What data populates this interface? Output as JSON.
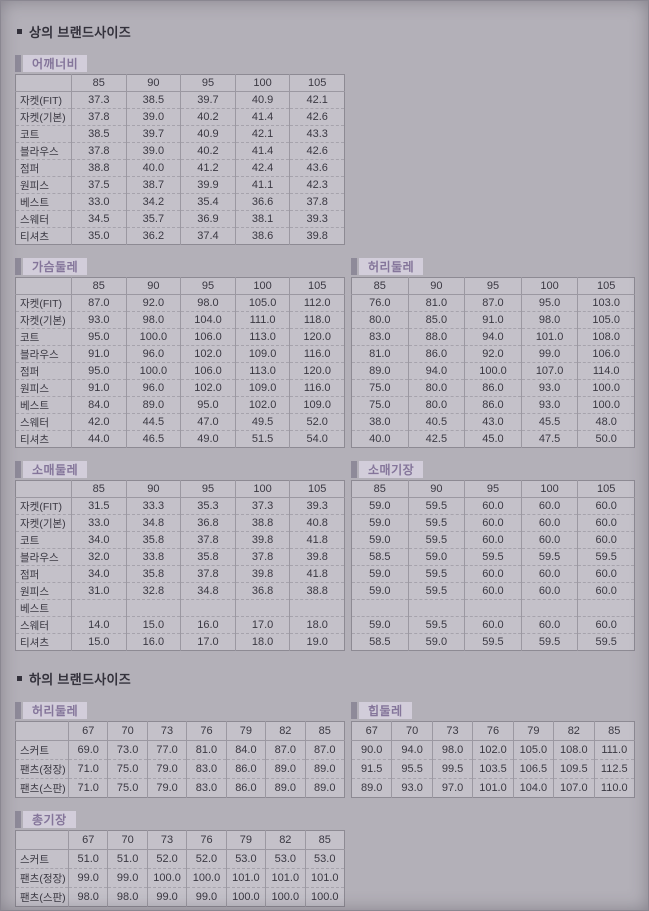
{
  "bullet": "▪",
  "sections": {
    "tops": {
      "title": "상의 브랜드사이즈"
    },
    "bottoms": {
      "title": "하의 브랜드사이즈"
    }
  },
  "colors": {
    "page_bg": "#b3b0b8",
    "cell_bg": "#c4c1c9",
    "table_border": "#8d8a93",
    "chip_bg": "#d2cdda",
    "chip_bar": "#8e8a99",
    "chip_text": "#84759a",
    "text": "#3a3842"
  },
  "tables": {
    "shoulder": {
      "label": "어깨너비",
      "size_headers": [
        "85",
        "90",
        "95",
        "100",
        "105"
      ],
      "row_labels": [
        "자켓(FIT)",
        "자켓(기본)",
        "코트",
        "블라우스",
        "점퍼",
        "원피스",
        "베스트",
        "스웨터",
        "티셔츠"
      ],
      "rows": [
        [
          "37.3",
          "38.5",
          "39.7",
          "40.9",
          "42.1"
        ],
        [
          "37.8",
          "39.0",
          "40.2",
          "41.4",
          "42.6"
        ],
        [
          "38.5",
          "39.7",
          "40.9",
          "42.1",
          "43.3"
        ],
        [
          "37.8",
          "39.0",
          "40.2",
          "41.4",
          "42.6"
        ],
        [
          "38.8",
          "40.0",
          "41.2",
          "42.4",
          "43.6"
        ],
        [
          "37.5",
          "38.7",
          "39.9",
          "41.1",
          "42.3"
        ],
        [
          "33.0",
          "34.2",
          "35.4",
          "36.6",
          "37.8"
        ],
        [
          "34.5",
          "35.7",
          "36.9",
          "38.1",
          "39.3"
        ],
        [
          "35.0",
          "36.2",
          "37.4",
          "38.6",
          "39.8"
        ]
      ]
    },
    "chest": {
      "label": "가슴둘레",
      "size_headers": [
        "85",
        "90",
        "95",
        "100",
        "105"
      ],
      "row_labels": [
        "자켓(FIT)",
        "자켓(기본)",
        "코트",
        "블라우스",
        "점퍼",
        "원피스",
        "베스트",
        "스웨터",
        "티셔츠"
      ],
      "rows": [
        [
          "87.0",
          "92.0",
          "98.0",
          "105.0",
          "112.0"
        ],
        [
          "93.0",
          "98.0",
          "104.0",
          "111.0",
          "118.0"
        ],
        [
          "95.0",
          "100.0",
          "106.0",
          "113.0",
          "120.0"
        ],
        [
          "91.0",
          "96.0",
          "102.0",
          "109.0",
          "116.0"
        ],
        [
          "95.0",
          "100.0",
          "106.0",
          "113.0",
          "120.0"
        ],
        [
          "91.0",
          "96.0",
          "102.0",
          "109.0",
          "116.0"
        ],
        [
          "84.0",
          "89.0",
          "95.0",
          "102.0",
          "109.0"
        ],
        [
          "42.0",
          "44.5",
          "47.0",
          "49.5",
          "52.0"
        ],
        [
          "44.0",
          "46.5",
          "49.0",
          "51.5",
          "54.0"
        ]
      ]
    },
    "waist_top": {
      "label": "허리둘레",
      "size_headers": [
        "85",
        "90",
        "95",
        "100",
        "105"
      ],
      "row_labels": null,
      "rows": [
        [
          "76.0",
          "81.0",
          "87.0",
          "95.0",
          "103.0"
        ],
        [
          "80.0",
          "85.0",
          "91.0",
          "98.0",
          "105.0"
        ],
        [
          "83.0",
          "88.0",
          "94.0",
          "101.0",
          "108.0"
        ],
        [
          "81.0",
          "86.0",
          "92.0",
          "99.0",
          "106.0"
        ],
        [
          "89.0",
          "94.0",
          "100.0",
          "107.0",
          "114.0"
        ],
        [
          "75.0",
          "80.0",
          "86.0",
          "93.0",
          "100.0"
        ],
        [
          "75.0",
          "80.0",
          "86.0",
          "93.0",
          "100.0"
        ],
        [
          "38.0",
          "40.5",
          "43.0",
          "45.5",
          "48.0"
        ],
        [
          "40.0",
          "42.5",
          "45.0",
          "47.5",
          "50.0"
        ]
      ]
    },
    "sleeve_width": {
      "label": "소매둘레",
      "size_headers": [
        "85",
        "90",
        "95",
        "100",
        "105"
      ],
      "row_labels": [
        "자켓(FIT)",
        "자켓(기본)",
        "코트",
        "블라우스",
        "점퍼",
        "원피스",
        "베스트",
        "스웨터",
        "티셔츠"
      ],
      "rows": [
        [
          "31.5",
          "33.3",
          "35.3",
          "37.3",
          "39.3"
        ],
        [
          "33.0",
          "34.8",
          "36.8",
          "38.8",
          "40.8"
        ],
        [
          "34.0",
          "35.8",
          "37.8",
          "39.8",
          "41.8"
        ],
        [
          "32.0",
          "33.8",
          "35.8",
          "37.8",
          "39.8"
        ],
        [
          "34.0",
          "35.8",
          "37.8",
          "39.8",
          "41.8"
        ],
        [
          "31.0",
          "32.8",
          "34.8",
          "36.8",
          "38.8"
        ],
        [
          "",
          "",
          "",
          "",
          ""
        ],
        [
          "14.0",
          "15.0",
          "16.0",
          "17.0",
          "18.0"
        ],
        [
          "15.0",
          "16.0",
          "17.0",
          "18.0",
          "19.0"
        ]
      ]
    },
    "sleeve_length": {
      "label": "소매기장",
      "size_headers": [
        "85",
        "90",
        "95",
        "100",
        "105"
      ],
      "row_labels": null,
      "rows": [
        [
          "59.0",
          "59.5",
          "60.0",
          "60.0",
          "60.0"
        ],
        [
          "59.0",
          "59.5",
          "60.0",
          "60.0",
          "60.0"
        ],
        [
          "59.0",
          "59.5",
          "60.0",
          "60.0",
          "60.0"
        ],
        [
          "58.5",
          "59.0",
          "59.5",
          "59.5",
          "59.5"
        ],
        [
          "59.0",
          "59.5",
          "60.0",
          "60.0",
          "60.0"
        ],
        [
          "59.0",
          "59.5",
          "60.0",
          "60.0",
          "60.0"
        ],
        [
          "",
          "",
          "",
          "",
          ""
        ],
        [
          "59.0",
          "59.5",
          "60.0",
          "60.0",
          "60.0"
        ],
        [
          "58.5",
          "59.0",
          "59.5",
          "59.5",
          "59.5"
        ]
      ]
    },
    "waist_bottom": {
      "label": "허리둘레",
      "size_headers": [
        "67",
        "70",
        "73",
        "76",
        "79",
        "82",
        "85"
      ],
      "row_labels": [
        "스커트",
        "팬츠(정장)",
        "팬츠(스판)"
      ],
      "rows": [
        [
          "69.0",
          "73.0",
          "77.0",
          "81.0",
          "84.0",
          "87.0",
          "87.0"
        ],
        [
          "71.0",
          "75.0",
          "79.0",
          "83.0",
          "86.0",
          "89.0",
          "89.0"
        ],
        [
          "71.0",
          "75.0",
          "79.0",
          "83.0",
          "86.0",
          "89.0",
          "89.0"
        ]
      ]
    },
    "hip": {
      "label": "힙둘레",
      "size_headers": [
        "67",
        "70",
        "73",
        "76",
        "79",
        "82",
        "85"
      ],
      "row_labels": null,
      "rows": [
        [
          "90.0",
          "94.0",
          "98.0",
          "102.0",
          "105.0",
          "108.0",
          "111.0"
        ],
        [
          "91.5",
          "95.5",
          "99.5",
          "103.5",
          "106.5",
          "109.5",
          "112.5"
        ],
        [
          "89.0",
          "93.0",
          "97.0",
          "101.0",
          "104.0",
          "107.0",
          "110.0"
        ]
      ]
    },
    "total_length": {
      "label": "총기장",
      "size_headers": [
        "67",
        "70",
        "73",
        "76",
        "79",
        "82",
        "85"
      ],
      "row_labels": [
        "스커트",
        "팬츠(정장)",
        "팬츠(스판)"
      ],
      "rows": [
        [
          "51.0",
          "51.0",
          "52.0",
          "52.0",
          "53.0",
          "53.0",
          "53.0"
        ],
        [
          "99.0",
          "99.0",
          "100.0",
          "100.0",
          "101.0",
          "101.0",
          "101.0"
        ],
        [
          "98.0",
          "98.0",
          "99.0",
          "99.0",
          "100.0",
          "100.0",
          "100.0"
        ]
      ]
    }
  }
}
